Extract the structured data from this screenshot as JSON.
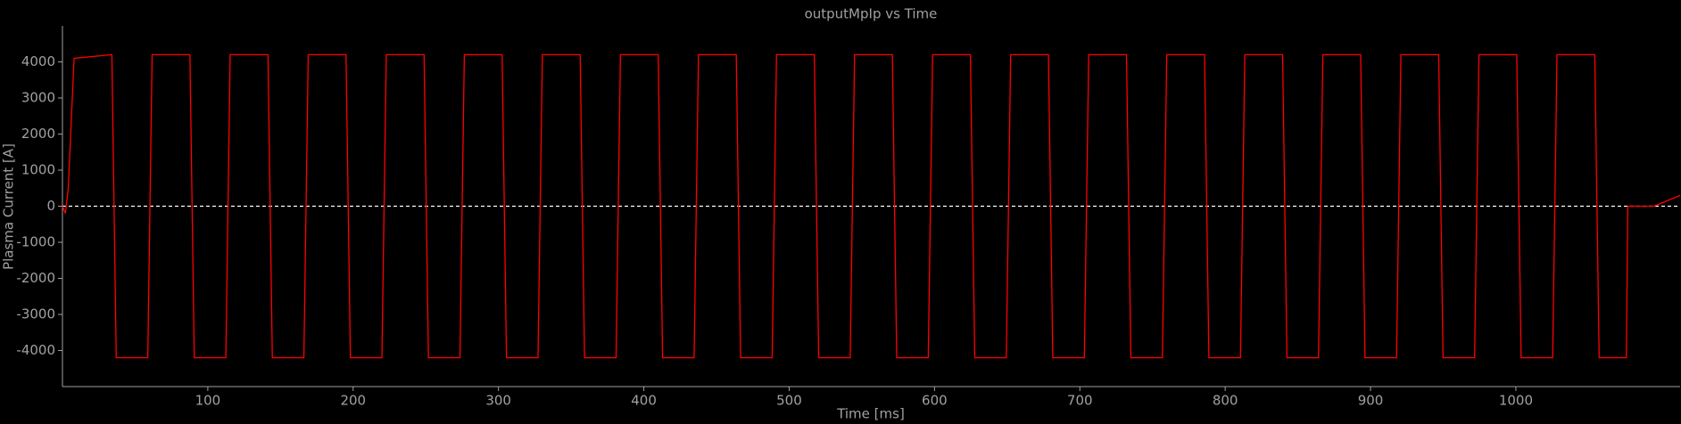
{
  "chart_data": {
    "type": "line",
    "title": "outputMpIp vs Time",
    "xlabel": "Time [ms]",
    "ylabel": "Plasma Current [A]",
    "x": [
      0,
      2,
      4,
      8,
      34,
      37,
      58.7,
      61.7,
      87.7,
      90.7,
      112.4,
      115.4,
      141.4,
      144.4,
      166.1,
      169.1,
      195.1,
      198.1,
      219.8,
      222.8,
      248.8,
      251.8,
      273.5,
      276.5,
      302.5,
      305.5,
      327.2,
      330.2,
      356.2,
      359.2,
      380.9,
      383.9,
      409.9,
      412.9,
      434.6,
      437.6,
      463.6,
      466.6,
      488.3,
      491.3,
      517.3,
      520.3,
      542,
      545,
      571,
      574,
      595.7,
      598.7,
      624.7,
      627.7,
      649.4,
      652.4,
      678.4,
      681.4,
      703.1,
      706.1,
      732.1,
      735.1,
      756.8,
      759.8,
      785.8,
      788.8,
      810.5,
      813.5,
      839.5,
      842.5,
      864.2,
      867.2,
      893.2,
      896.2,
      917.9,
      920.9,
      946.9,
      949.9,
      971.6,
      974.6,
      1000.6,
      1003.6,
      1025.3,
      1028.3,
      1054.3,
      1057.3,
      1076,
      1077,
      1095,
      1113
    ],
    "series": [
      {
        "name": "outputMpIp",
        "color": "#ff0000",
        "values": [
          0,
          -200,
          500,
          4100,
          4200,
          -4200,
          -4200,
          4200,
          4200,
          -4200,
          -4200,
          4200,
          4200,
          -4200,
          -4200,
          4200,
          4200,
          -4200,
          -4200,
          4200,
          4200,
          -4200,
          -4200,
          4200,
          4200,
          -4200,
          -4200,
          4200,
          4200,
          -4200,
          -4200,
          4200,
          4200,
          -4200,
          -4200,
          4200,
          4200,
          -4200,
          -4200,
          4200,
          4200,
          -4200,
          -4200,
          4200,
          4200,
          -4200,
          -4200,
          4200,
          4200,
          -4200,
          -4200,
          4200,
          4200,
          -4200,
          -4200,
          4200,
          4200,
          -4200,
          -4200,
          4200,
          4200,
          -4200,
          -4200,
          4200,
          4200,
          -4200,
          -4200,
          4200,
          4200,
          -4200,
          -4200,
          4200,
          4200,
          -4200,
          -4200,
          4200,
          4200,
          -4200,
          -4200,
          4200,
          4200,
          -4200,
          -4200,
          0,
          0,
          300
        ]
      }
    ],
    "xlim": [
      0,
      1113
    ],
    "ylim": [
      -5000,
      5000
    ],
    "xticks": [
      100,
      200,
      300,
      400,
      500,
      600,
      700,
      800,
      900,
      1000
    ],
    "yticks": [
      -4000,
      -3000,
      -2000,
      -1000,
      0,
      1000,
      2000,
      3000,
      4000
    ],
    "hline": 0
  }
}
